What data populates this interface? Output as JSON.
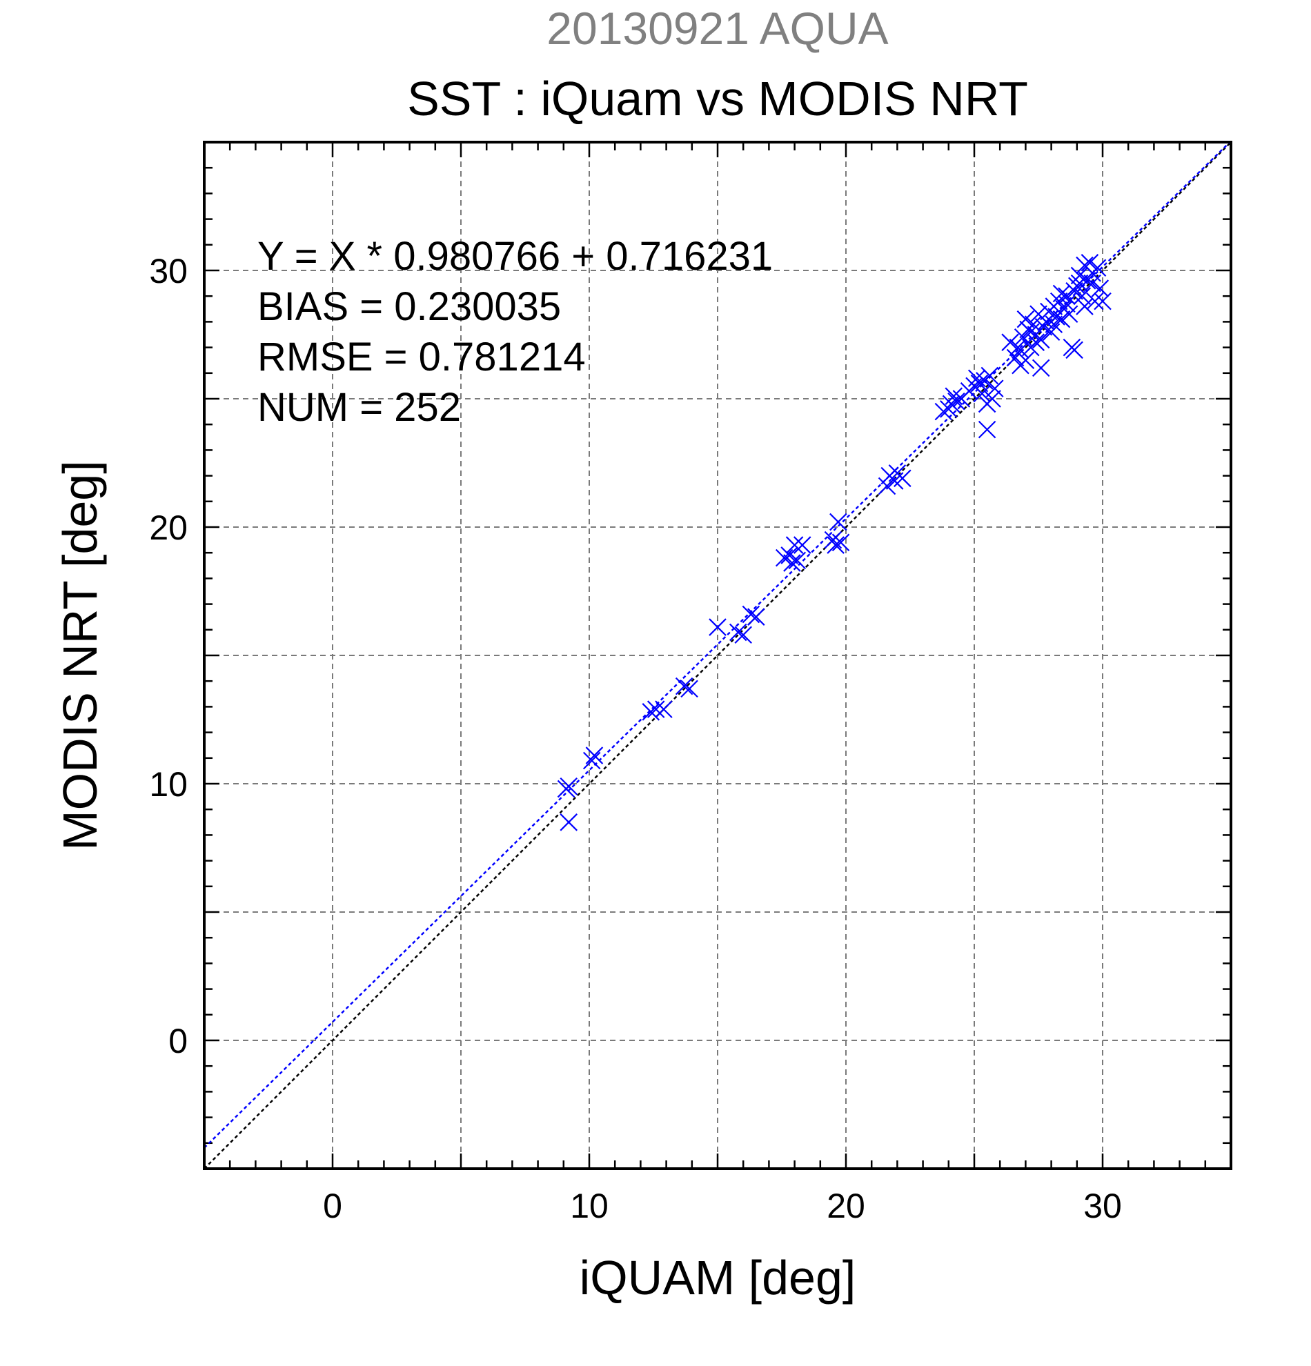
{
  "chart_data": {
    "type": "scatter",
    "title": "20130921 AQUA",
    "subtitle": "SST : iQuam vs MODIS NRT",
    "xlabel": "iQUAM [deg]",
    "ylabel": "MODIS NRT [deg]",
    "xlim": [
      -5,
      35
    ],
    "ylim": [
      -5,
      35
    ],
    "xticks": [
      0,
      10,
      20,
      30
    ],
    "yticks": [
      0,
      10,
      20,
      30
    ],
    "grid": true,
    "marker": "x",
    "colors": {
      "points": "#0000ff",
      "fit_line": "#0000ff",
      "identity_line": "#000000",
      "title": "#808080"
    },
    "stats": [
      "Y = X * 0.980766 + 0.716231",
      "BIAS = 0.230035",
      "RMSE = 0.781214",
      "NUM = 252"
    ],
    "fit_line": {
      "slope": 0.980766,
      "intercept": 0.716231
    },
    "identity_line": {
      "slope": 1,
      "intercept": 0
    },
    "points": [
      [
        9.2,
        9.9
      ],
      [
        9.1,
        9.8
      ],
      [
        9.2,
        8.5
      ],
      [
        10.2,
        11.1
      ],
      [
        10.1,
        10.9
      ],
      [
        12.4,
        12.8
      ],
      [
        12.6,
        12.9
      ],
      [
        12.9,
        12.9
      ],
      [
        13.7,
        13.8
      ],
      [
        13.9,
        13.7
      ],
      [
        15.0,
        16.1
      ],
      [
        15.8,
        15.9
      ],
      [
        16.0,
        15.8
      ],
      [
        16.3,
        16.6
      ],
      [
        16.5,
        16.5
      ],
      [
        17.6,
        18.8
      ],
      [
        17.9,
        18.6
      ],
      [
        18.0,
        19.3
      ],
      [
        18.1,
        18.7
      ],
      [
        18.3,
        19.3
      ],
      [
        17.8,
        18.9
      ],
      [
        19.5,
        19.5
      ],
      [
        19.6,
        19.3
      ],
      [
        19.7,
        20.2
      ],
      [
        19.8,
        19.4
      ],
      [
        21.6,
        21.6
      ],
      [
        21.7,
        22.0
      ],
      [
        21.9,
        21.8
      ],
      [
        22.0,
        22.1
      ],
      [
        22.2,
        21.9
      ],
      [
        23.8,
        24.5
      ],
      [
        24.0,
        24.6
      ],
      [
        24.1,
        24.8
      ],
      [
        24.2,
        25.1
      ],
      [
        24.3,
        24.9
      ],
      [
        24.5,
        25.0
      ],
      [
        24.8,
        25.3
      ],
      [
        25.0,
        25.5
      ],
      [
        25.1,
        25.8
      ],
      [
        25.2,
        25.6
      ],
      [
        25.3,
        25.2
      ],
      [
        25.4,
        25.7
      ],
      [
        25.5,
        24.8
      ],
      [
        25.6,
        25.9
      ],
      [
        25.5,
        23.8
      ],
      [
        25.8,
        25.4
      ],
      [
        25.7,
        25.0
      ],
      [
        26.4,
        27.2
      ],
      [
        26.6,
        26.6
      ],
      [
        26.7,
        27.0
      ],
      [
        26.8,
        26.3
      ],
      [
        26.9,
        27.4
      ],
      [
        27.0,
        28.1
      ],
      [
        27.1,
        27.7
      ],
      [
        27.2,
        27.0
      ],
      [
        27.3,
        27.9
      ],
      [
        27.4,
        27.5
      ],
      [
        27.5,
        28.3
      ],
      [
        27.6,
        26.2
      ],
      [
        27.7,
        27.8
      ],
      [
        27.8,
        28.0
      ],
      [
        27.9,
        28.4
      ],
      [
        28.0,
        27.6
      ],
      [
        28.1,
        28.6
      ],
      [
        28.2,
        28.2
      ],
      [
        28.3,
        28.8
      ],
      [
        28.4,
        29.1
      ],
      [
        28.5,
        28.5
      ],
      [
        28.6,
        29.0
      ],
      [
        28.7,
        28.3
      ],
      [
        28.8,
        27.0
      ],
      [
        28.9,
        26.9
      ],
      [
        29.0,
        29.4
      ],
      [
        29.1,
        29.8
      ],
      [
        29.2,
        29.0
      ],
      [
        29.3,
        30.2
      ],
      [
        29.4,
        29.6
      ],
      [
        29.5,
        30.3
      ],
      [
        29.6,
        29.9
      ],
      [
        29.7,
        28.8
      ],
      [
        29.8,
        30.1
      ],
      [
        29.9,
        29.3
      ],
      [
        30.0,
        28.8
      ],
      [
        26.8,
        26.9
      ],
      [
        27.2,
        27.6
      ],
      [
        27.6,
        27.3
      ],
      [
        28.1,
        27.9
      ],
      [
        28.4,
        28.1
      ],
      [
        28.9,
        29.2
      ],
      [
        29.3,
        28.6
      ],
      [
        29.6,
        29.5
      ],
      [
        27.0,
        26.5
      ],
      [
        27.4,
        27.2
      ],
      [
        28.6,
        28.7
      ],
      [
        29.1,
        29.5
      ]
    ]
  }
}
